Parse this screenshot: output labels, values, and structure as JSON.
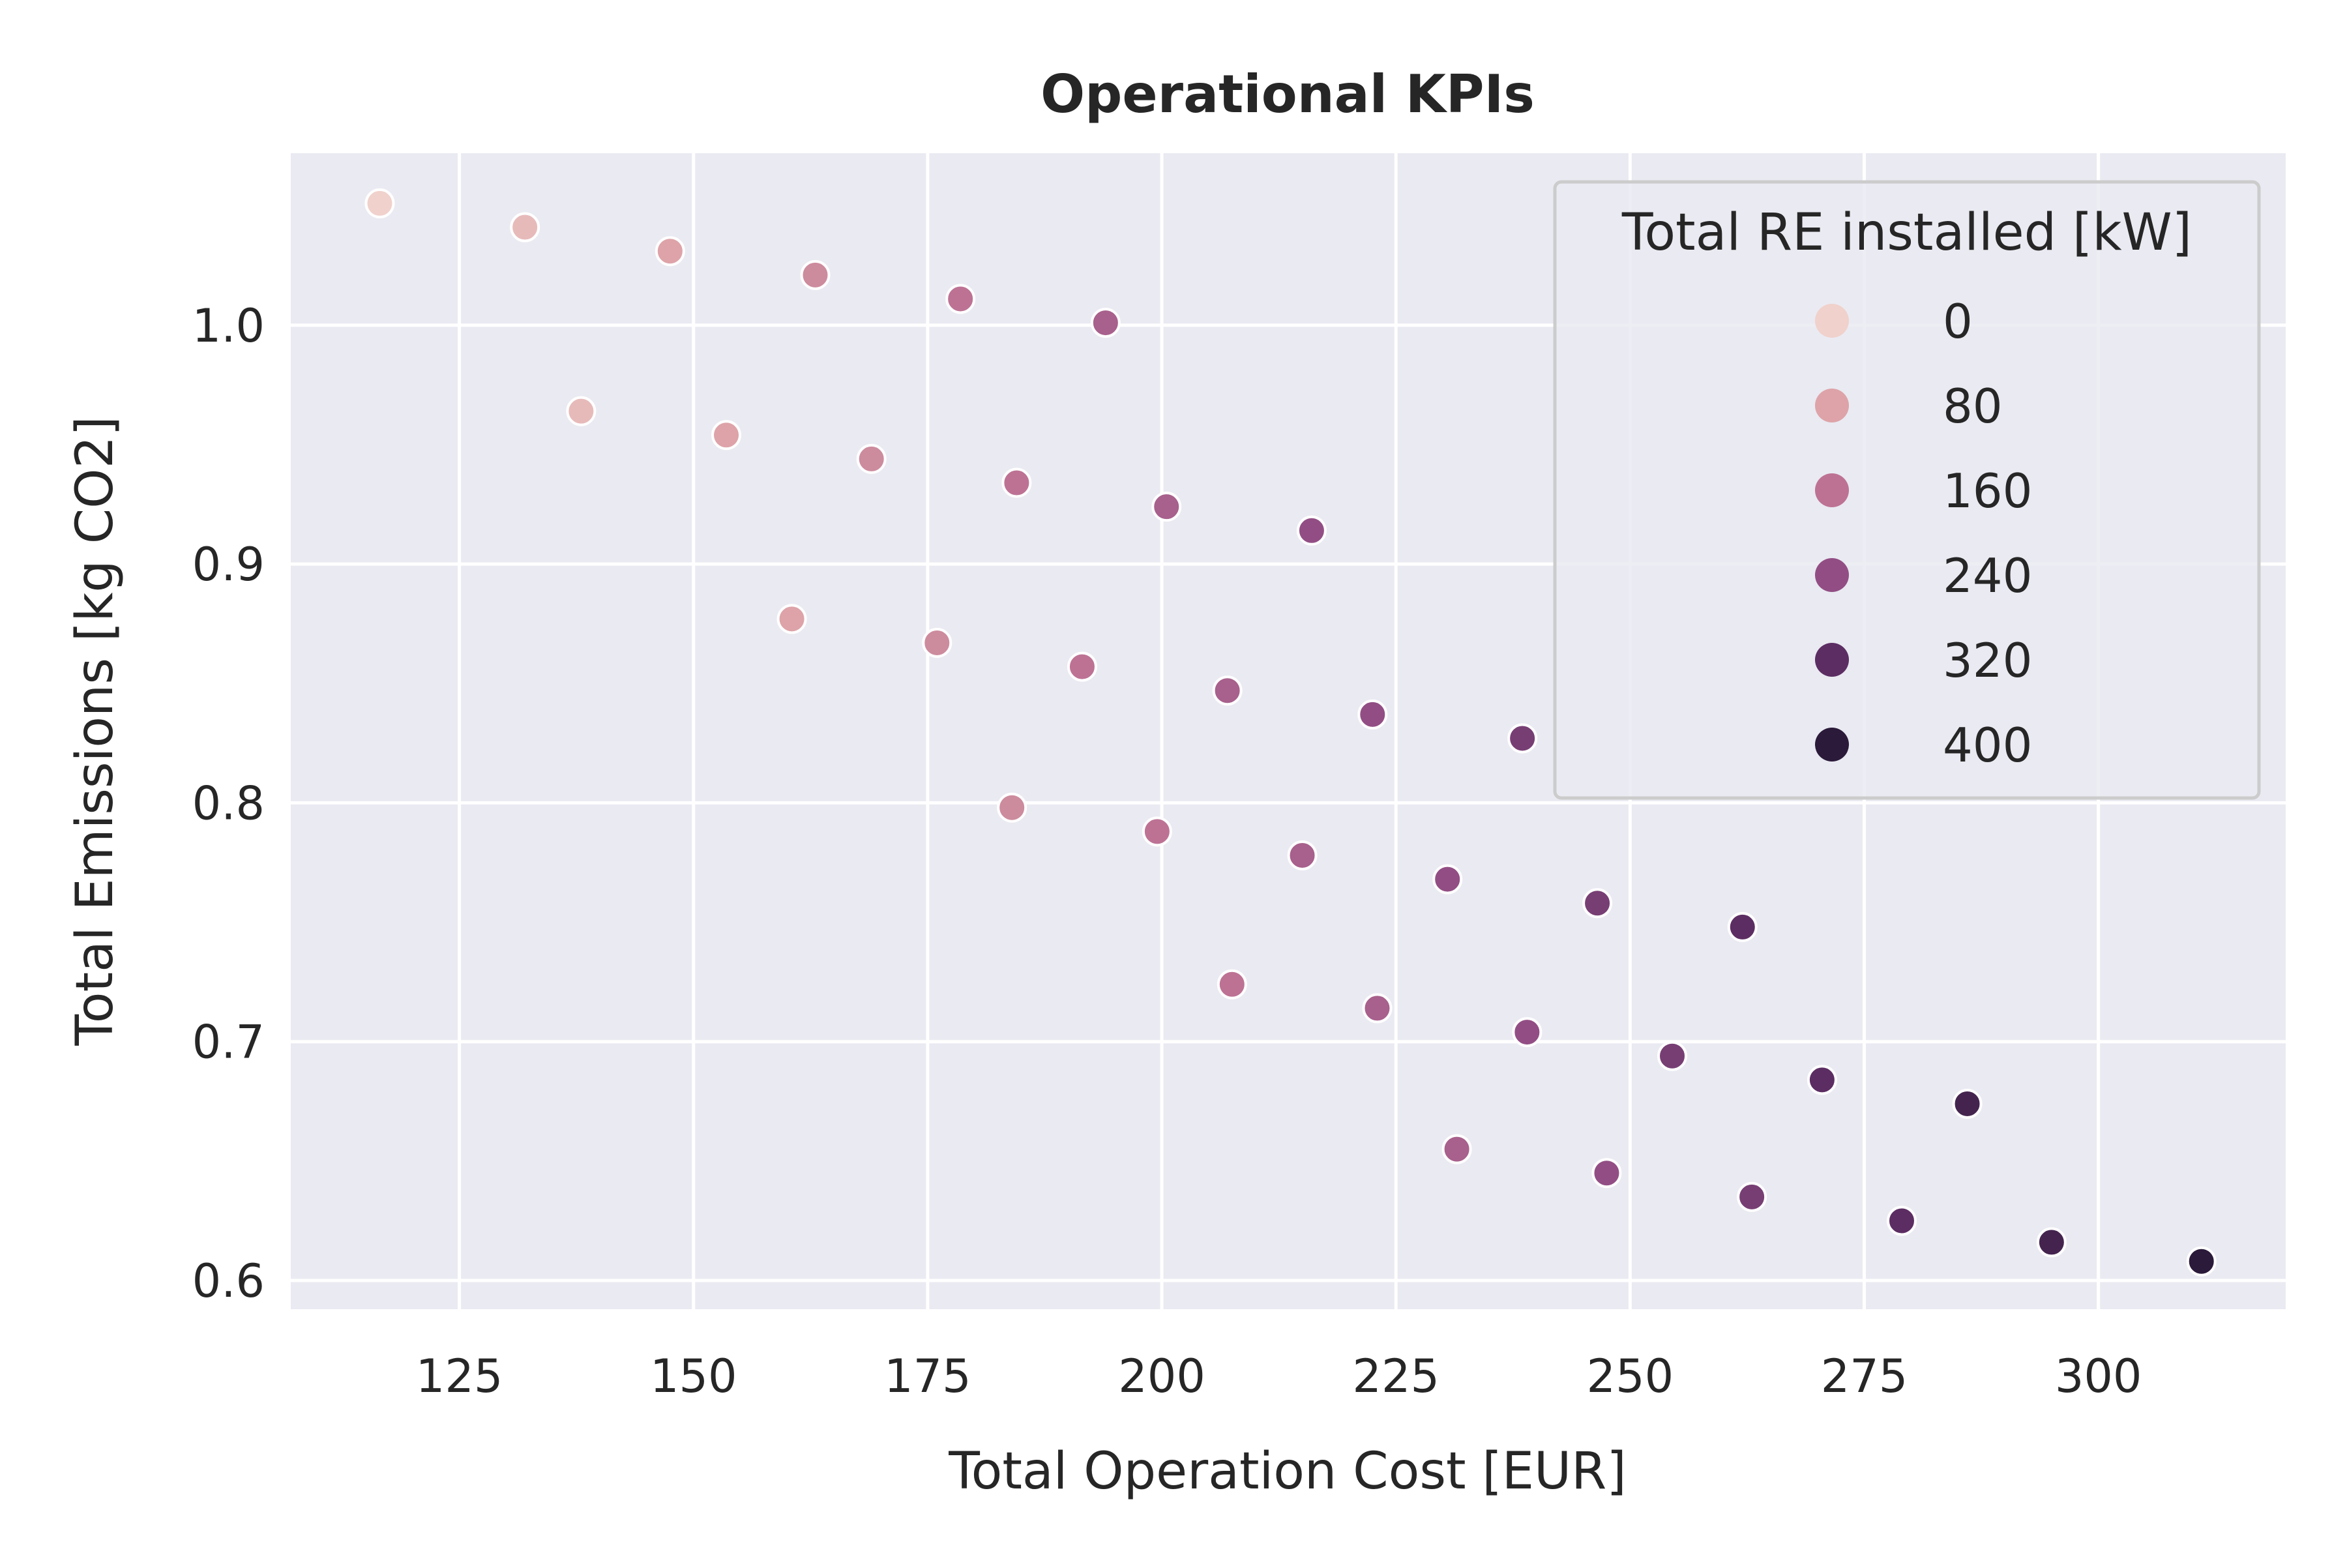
{
  "chart_data": {
    "type": "scatter",
    "title": "Operational KPIs",
    "xlabel": "Total Operation Cost [EUR]",
    "ylabel": "Total Emissions [kg CO2]",
    "xlim": [
      107,
      320
    ],
    "ylim": [
      0.588,
      1.072
    ],
    "xticks": [
      125,
      150,
      175,
      200,
      225,
      250,
      275,
      300
    ],
    "yticks": [
      0.6,
      0.7,
      0.8,
      0.9,
      1.0
    ],
    "ytick_labels": [
      "0.6",
      "0.7",
      "0.8",
      "0.9",
      "1.0"
    ],
    "grid": true,
    "background": "#eaeaf2",
    "legend": {
      "title": "Total RE installed [kW]",
      "placement": "top-right",
      "entries": [
        {
          "label": "0",
          "value": 0
        },
        {
          "label": "80",
          "value": 80
        },
        {
          "label": "160",
          "value": 160
        },
        {
          "label": "240",
          "value": 240
        },
        {
          "label": "320",
          "value": 320
        },
        {
          "label": "400",
          "value": 400
        }
      ]
    },
    "hue_colors": [
      {
        "value": 0,
        "color": "#f0d1cb"
      },
      {
        "value": 80,
        "color": "#dda3a8"
      },
      {
        "value": 160,
        "color": "#bd7294"
      },
      {
        "value": 240,
        "color": "#924e84"
      },
      {
        "value": 320,
        "color": "#5c2d63"
      },
      {
        "value": 400,
        "color": "#2b1a3a"
      }
    ],
    "points": [
      {
        "x": 116.5,
        "y": 1.051,
        "hue": 0
      },
      {
        "x": 132.0,
        "y": 1.041,
        "hue": 40
      },
      {
        "x": 147.5,
        "y": 1.031,
        "hue": 80
      },
      {
        "x": 163.0,
        "y": 1.021,
        "hue": 120
      },
      {
        "x": 178.5,
        "y": 1.011,
        "hue": 160
      },
      {
        "x": 194.0,
        "y": 1.001,
        "hue": 200
      },
      {
        "x": 138.0,
        "y": 0.964,
        "hue": 40
      },
      {
        "x": 153.5,
        "y": 0.954,
        "hue": 80
      },
      {
        "x": 169.0,
        "y": 0.944,
        "hue": 120
      },
      {
        "x": 184.5,
        "y": 0.934,
        "hue": 160
      },
      {
        "x": 200.5,
        "y": 0.924,
        "hue": 200
      },
      {
        "x": 216.0,
        "y": 0.914,
        "hue": 240
      },
      {
        "x": 160.5,
        "y": 0.877,
        "hue": 80
      },
      {
        "x": 176.0,
        "y": 0.867,
        "hue": 120
      },
      {
        "x": 191.5,
        "y": 0.857,
        "hue": 160
      },
      {
        "x": 207.0,
        "y": 0.847,
        "hue": 200
      },
      {
        "x": 222.5,
        "y": 0.837,
        "hue": 240
      },
      {
        "x": 238.5,
        "y": 0.827,
        "hue": 280
      },
      {
        "x": 184.0,
        "y": 0.798,
        "hue": 120
      },
      {
        "x": 199.5,
        "y": 0.788,
        "hue": 160
      },
      {
        "x": 215.0,
        "y": 0.778,
        "hue": 200
      },
      {
        "x": 230.5,
        "y": 0.768,
        "hue": 240
      },
      {
        "x": 246.5,
        "y": 0.758,
        "hue": 280
      },
      {
        "x": 262.0,
        "y": 0.748,
        "hue": 320
      },
      {
        "x": 207.5,
        "y": 0.724,
        "hue": 160
      },
      {
        "x": 223.0,
        "y": 0.714,
        "hue": 200
      },
      {
        "x": 239.0,
        "y": 0.704,
        "hue": 240
      },
      {
        "x": 254.5,
        "y": 0.694,
        "hue": 280
      },
      {
        "x": 270.5,
        "y": 0.684,
        "hue": 320
      },
      {
        "x": 286.0,
        "y": 0.674,
        "hue": 360
      },
      {
        "x": 231.5,
        "y": 0.655,
        "hue": 200
      },
      {
        "x": 247.5,
        "y": 0.645,
        "hue": 240
      },
      {
        "x": 263.0,
        "y": 0.635,
        "hue": 280
      },
      {
        "x": 279.0,
        "y": 0.625,
        "hue": 320
      },
      {
        "x": 295.0,
        "y": 0.616,
        "hue": 360
      },
      {
        "x": 311.0,
        "y": 0.608,
        "hue": 400
      }
    ]
  }
}
